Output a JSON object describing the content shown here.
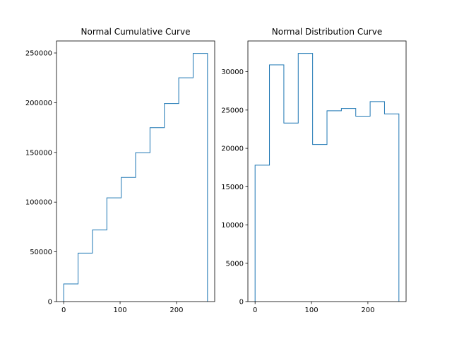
{
  "chart_data": [
    {
      "type": "step",
      "title": "Normal Cumulative Curve",
      "bin_edges": [
        0,
        25.5,
        51,
        76.5,
        102,
        127.5,
        153,
        178.5,
        204,
        229.5,
        255
      ],
      "values": [
        17800,
        48700,
        72000,
        104300,
        124800,
        149700,
        174900,
        199100,
        225100,
        249600
      ],
      "xlim": [
        -12.75,
        267.75
      ],
      "ylim": [
        0,
        262080
      ],
      "xticks": [
        0,
        100,
        200
      ],
      "yticks": [
        0,
        50000,
        100000,
        150000,
        200000,
        250000
      ],
      "color": "#1f77b4"
    },
    {
      "type": "step",
      "title": "Normal Distribution Curve",
      "bin_edges": [
        0,
        25.5,
        51,
        76.5,
        102,
        127.5,
        153,
        178.5,
        204,
        229.5,
        255
      ],
      "values": [
        17800,
        30900,
        23300,
        32400,
        20500,
        24900,
        25200,
        24200,
        26100,
        24500
      ],
      "xlim": [
        -12.75,
        267.75
      ],
      "ylim": [
        0,
        34020
      ],
      "xticks": [
        0,
        100,
        200
      ],
      "yticks": [
        0,
        5000,
        10000,
        15000,
        20000,
        25000,
        30000
      ],
      "color": "#1f77b4"
    }
  ]
}
